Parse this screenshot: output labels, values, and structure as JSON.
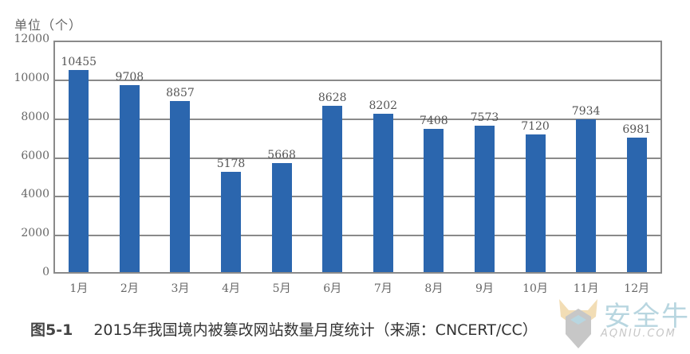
{
  "chart_data": {
    "type": "bar",
    "title": "2015年我国境内被篡改网站数量月度统计（来源：CNCERT/CC）",
    "figure_label": "图5-1",
    "ylabel": "单位（个）",
    "xlabel": "",
    "ylim": [
      0,
      12000
    ],
    "yticks": [
      0,
      2000,
      4000,
      6000,
      8000,
      10000,
      12000
    ],
    "grid": true,
    "legend": null,
    "bar_color": "#2b66ae",
    "categories": [
      "1月",
      "2月",
      "3月",
      "4月",
      "5月",
      "6月",
      "7月",
      "8月",
      "9月",
      "10月",
      "11月",
      "12月"
    ],
    "values": [
      10455,
      9708,
      8857,
      5178,
      5668,
      8628,
      8202,
      7408,
      7573,
      7120,
      7934,
      6981
    ]
  },
  "header": {
    "unit_label": "单位（个）"
  },
  "caption": {
    "figure_label": "图5-1",
    "text": "2015年我国境内被篡改网站数量月度统计（来源：CNCERT/CC）"
  },
  "watermark": {
    "name": "安全牛",
    "domain": "AQNIU.COM"
  }
}
